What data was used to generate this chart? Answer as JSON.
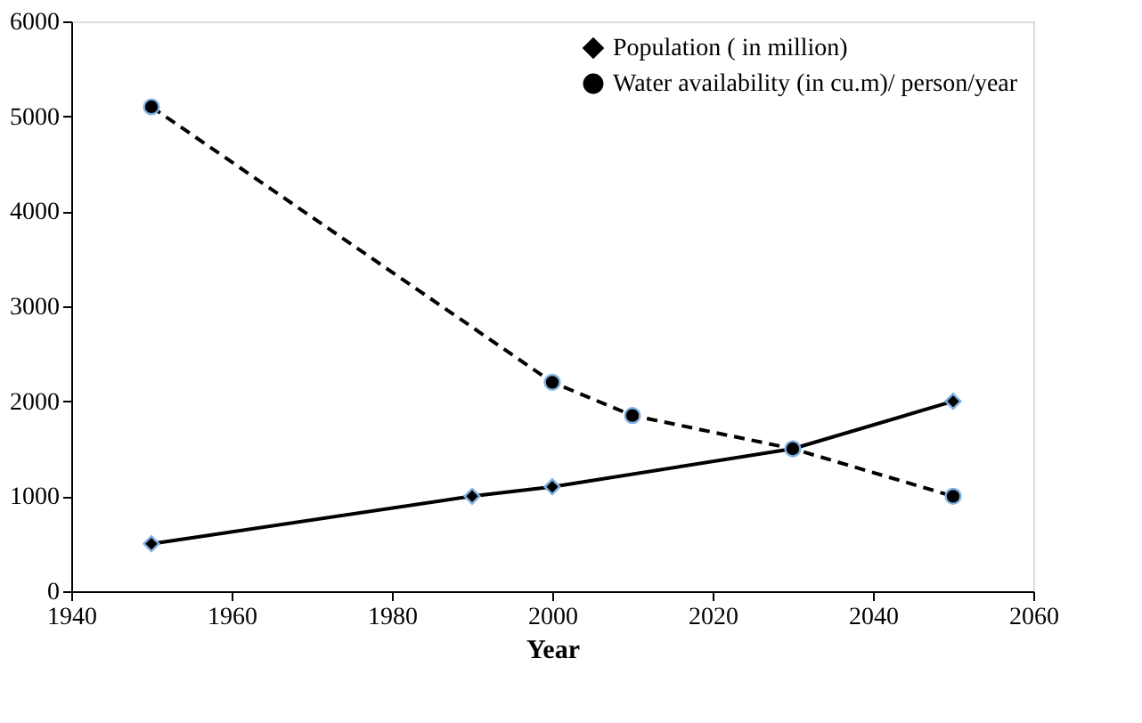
{
  "chart_data": {
    "type": "line",
    "xlabel": "Year",
    "x": [
      1950,
      1990,
      2000,
      2030,
      2050
    ],
    "series": [
      {
        "name": "Population ( in million)",
        "color": "#000000",
        "marker": "diamond",
        "line_style": "solid",
        "values": [
          500,
          1000,
          1100,
          1500,
          2000
        ]
      },
      {
        "name": "Water availability (in cu.m)/ person/year",
        "color": "#000000",
        "marker": "circle",
        "line_style": "dashed",
        "x": [
          1950,
          2000,
          2010,
          2030,
          2050
        ],
        "values": [
          5100,
          2200,
          1850,
          1500,
          1000
        ]
      }
    ],
    "xlim": [
      1940,
      2060
    ],
    "xticks": [
      1940,
      1960,
      1980,
      2000,
      2020,
      2040,
      2060
    ],
    "ylim": [
      0,
      6000
    ],
    "yticks": [
      0,
      1000,
      2000,
      3000,
      4000,
      5000,
      6000
    ],
    "grid": false,
    "legend": "top right"
  }
}
